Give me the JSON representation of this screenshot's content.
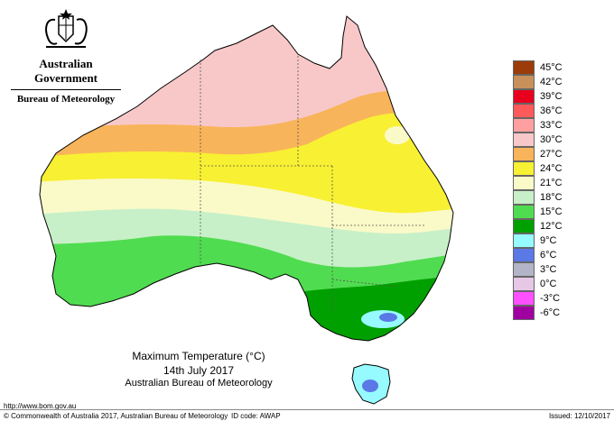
{
  "header": {
    "org": "Australian Government",
    "bureau": "Bureau of Meteorology"
  },
  "title": {
    "line1": "Maximum Temperature (°C)",
    "line2": "14th July 2017",
    "line3": "Australian Bureau of Meteorology"
  },
  "legend": [
    {
      "label": "45°C",
      "color": "#9c3c0a"
    },
    {
      "label": "42°C",
      "color": "#c8905a"
    },
    {
      "label": "39°C",
      "color": "#e8001e"
    },
    {
      "label": "36°C",
      "color": "#ff5a5a"
    },
    {
      "label": "33°C",
      "color": "#ffa0a0"
    },
    {
      "label": "30°C",
      "color": "#f8c8c8"
    },
    {
      "label": "27°C",
      "color": "#f8b45a"
    },
    {
      "label": "24°C",
      "color": "#f8f032"
    },
    {
      "label": "21°C",
      "color": "#fafac8"
    },
    {
      "label": "18°C",
      "color": "#c8f0c8"
    },
    {
      "label": "15°C",
      "color": "#50dc50"
    },
    {
      "label": "12°C",
      "color": "#00a000"
    },
    {
      "label": "9°C",
      "color": "#96faff"
    },
    {
      "label": "6°C",
      "color": "#5a78e6"
    },
    {
      "label": "3°C",
      "color": "#b4b4c8"
    },
    {
      "label": "0°C",
      "color": "#e6c8e6"
    },
    {
      "label": "-3°C",
      "color": "#ff50ff"
    },
    {
      "label": "-6°C",
      "color": "#a000a0"
    }
  ],
  "footer": {
    "url": "http://www.bom.gov.au",
    "copyright": "© Commonwealth of Australia 2017, Australian Bureau of Meteorology",
    "id_code": "ID code: AWAP",
    "issued": "Issued: 12/10/2017"
  }
}
